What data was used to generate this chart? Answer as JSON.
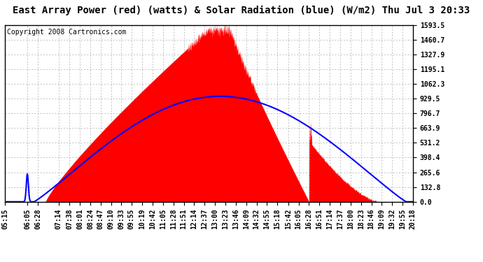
{
  "title": "East Array Power (red) (watts) & Solar Radiation (blue) (W/m2) Thu Jul 3 20:33",
  "copyright": "Copyright 2008 Cartronics.com",
  "bg_color": "#ffffff",
  "plot_bg_color": "#ffffff",
  "grid_color": "#aaaaaa",
  "red_color": "#ff0000",
  "blue_color": "#0000ff",
  "ymax": 1593.5,
  "ymin": 0.0,
  "yticks": [
    0.0,
    132.8,
    265.6,
    398.4,
    531.2,
    663.9,
    796.7,
    929.5,
    1062.3,
    1195.1,
    1327.9,
    1460.7,
    1593.5
  ],
  "xtick_labels": [
    "05:15",
    "06:05",
    "06:28",
    "07:14",
    "07:38",
    "08:01",
    "08:24",
    "08:47",
    "09:10",
    "09:33",
    "09:55",
    "10:19",
    "10:42",
    "11:05",
    "11:28",
    "11:51",
    "12:14",
    "12:37",
    "13:00",
    "13:23",
    "13:46",
    "14:09",
    "14:32",
    "14:55",
    "15:18",
    "15:42",
    "16:05",
    "16:28",
    "16:51",
    "17:14",
    "17:37",
    "18:00",
    "18:23",
    "18:46",
    "19:09",
    "19:32",
    "19:55",
    "20:18"
  ],
  "title_fontsize": 10,
  "axis_fontsize": 7,
  "copyright_fontsize": 7
}
